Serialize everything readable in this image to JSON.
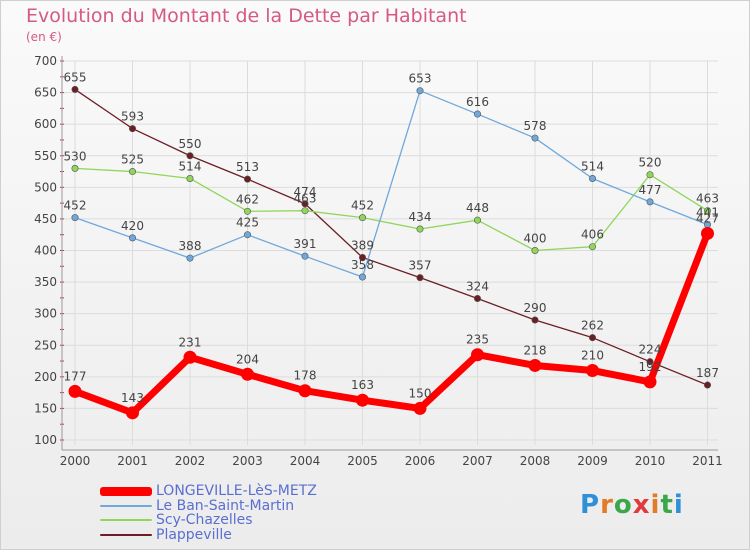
{
  "header": {
    "title": "Evolution du Montant de la Dette par Habitant",
    "subtitle": "(en €)"
  },
  "logo": {
    "text": "Proxiti",
    "colors": [
      "#2f8fd9",
      "#e27a28",
      "#3aa84a",
      "#e23a3a",
      "#e27a28",
      "#3aa84a",
      "#2f8fd9"
    ]
  },
  "chart_data": {
    "type": "line",
    "x": [
      "2000",
      "2001",
      "2002",
      "2003",
      "2004",
      "2005",
      "2006",
      "2007",
      "2008",
      "2009",
      "2010",
      "2011"
    ],
    "ylim": [
      100,
      700
    ],
    "yticks": [
      100,
      150,
      200,
      250,
      300,
      350,
      400,
      450,
      500,
      550,
      600,
      650,
      700
    ],
    "grid": true,
    "legend": "bottom-left",
    "series": [
      {
        "name": "Plappeville",
        "color": "#6b1f24",
        "values": [
          655,
          593,
          550,
          513,
          474,
          389,
          357,
          324,
          290,
          262,
          224,
          187
        ]
      },
      {
        "name": "Scy-Chazelles",
        "color": "#8fd65a",
        "values": [
          530,
          525,
          514,
          462,
          463,
          452,
          434,
          448,
          400,
          406,
          520,
          463
        ]
      },
      {
        "name": "Le Ban-Saint-Martin",
        "color": "#6fa8dc",
        "values": [
          452,
          420,
          388,
          425,
          391,
          358,
          653,
          616,
          578,
          514,
          477,
          441
        ]
      },
      {
        "name": "LONGEVILLE-LèS-METZ",
        "color": "#ff0000",
        "values": [
          177,
          143,
          231,
          204,
          178,
          163,
          150,
          235,
          218,
          210,
          192,
          427
        ]
      }
    ]
  }
}
